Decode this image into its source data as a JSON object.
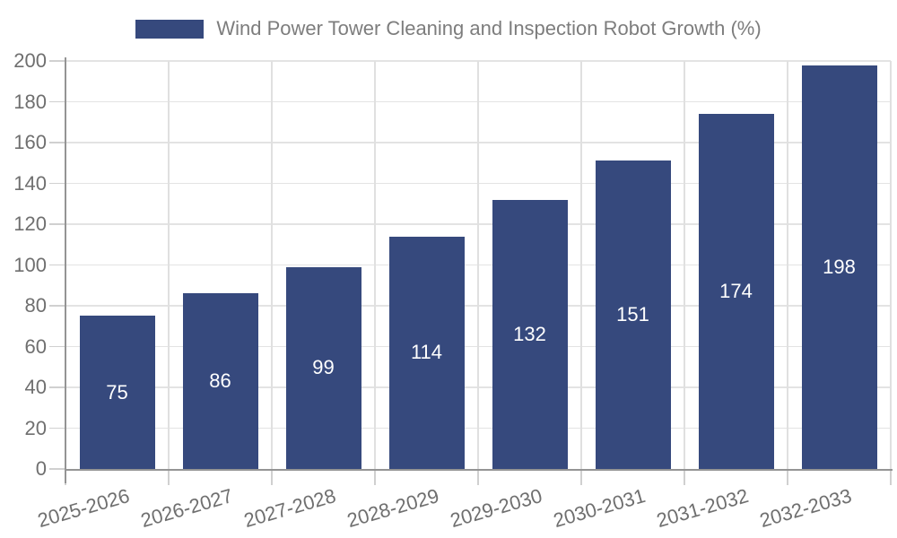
{
  "legend": {
    "label": "Wind Power Tower Cleaning and Inspection Robot Growth (%)"
  },
  "chart_data": {
    "type": "bar",
    "title": "Wind Power Tower Cleaning and Inspection Robot Growth (%)",
    "categories": [
      "2025-2026",
      "2026-2027",
      "2027-2028",
      "2028-2029",
      "2029-2030",
      "2030-2031",
      "2031-2032",
      "2032-2033"
    ],
    "values": [
      75,
      86,
      99,
      114,
      132,
      151,
      174,
      198
    ],
    "xlabel": "",
    "ylabel": "",
    "ylim": [
      0,
      200
    ],
    "ytick_step": 20,
    "ytick_labels": [
      "0",
      "20",
      "40",
      "60",
      "80",
      "100",
      "120",
      "140",
      "160",
      "180",
      "200"
    ],
    "grid": true,
    "legend_position": "top-center",
    "value_labels": "inside-center",
    "colors": {
      "bar": "#36497d",
      "value_label": "#ffffff",
      "axis_line": "#949494",
      "gridline": "#e2e2e2",
      "tick": "#d0d0d0",
      "axis_label_text": "#6f6f6f",
      "legend_text": "#7d7d7d",
      "background": "#ffffff"
    }
  }
}
